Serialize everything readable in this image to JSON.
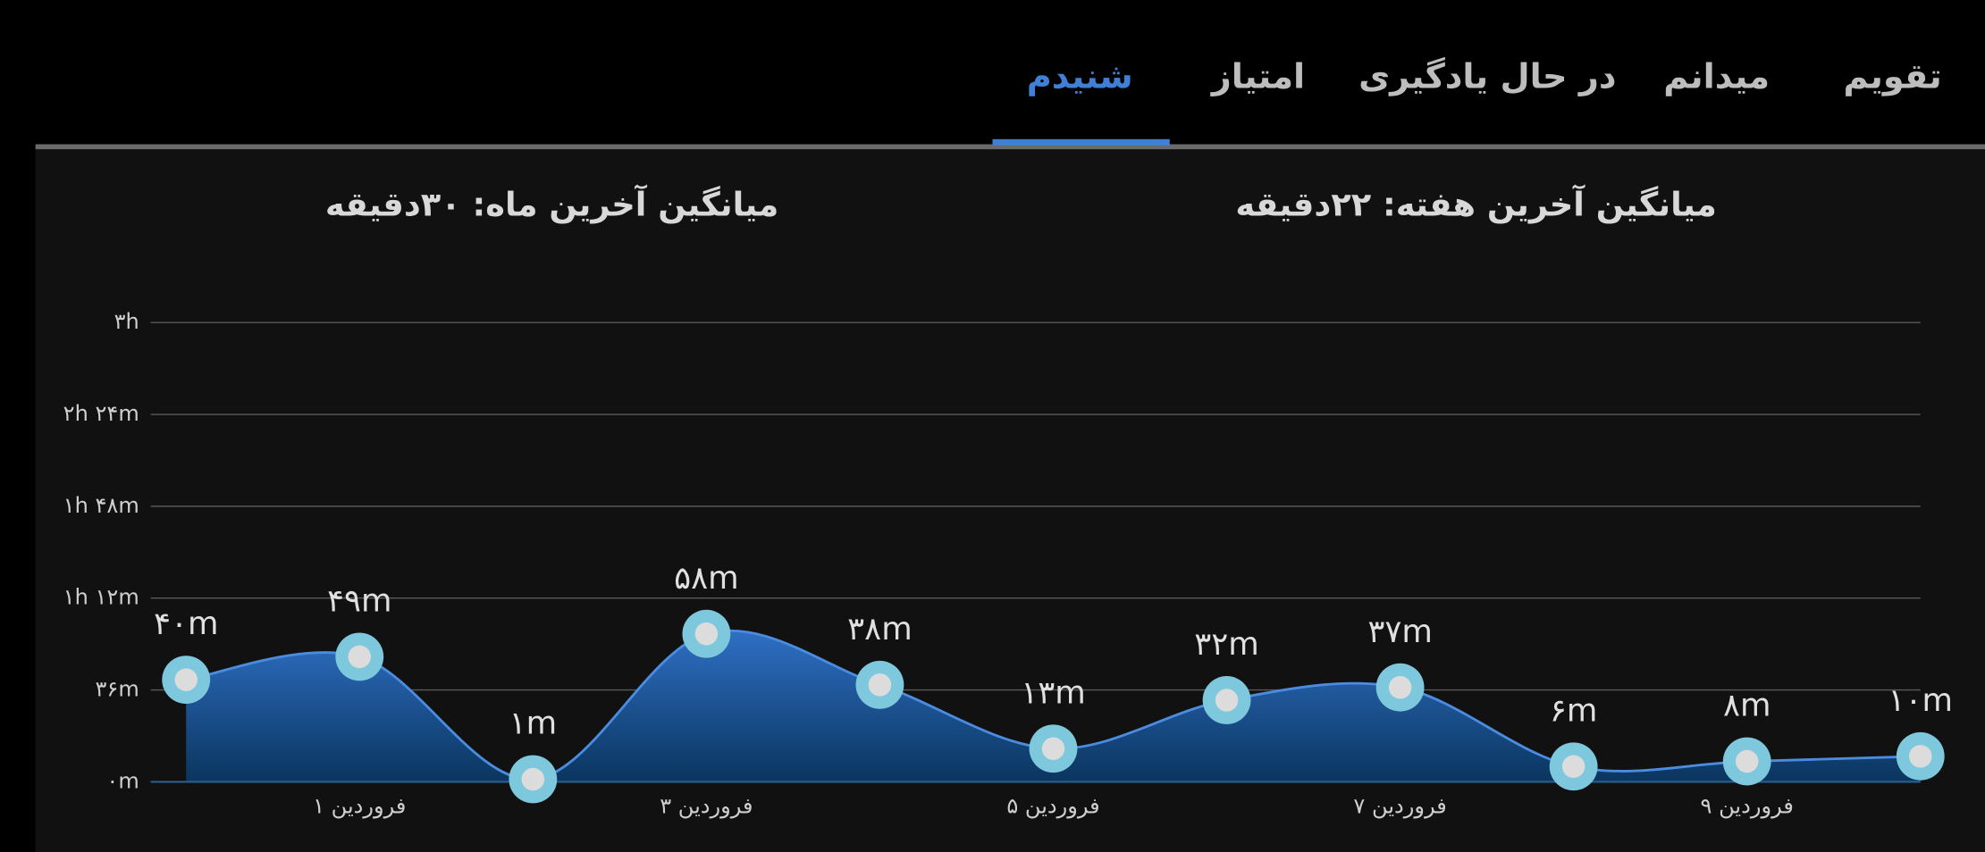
{
  "tabs": [
    "تقویم",
    "میدانم",
    "در حال یادگیری",
    "امتیاز",
    "شنیدم"
  ],
  "headings": {
    "week": "میانگین آخرین هفته: ۲۲دقیقه",
    "month": "میانگین آخرین ماه: ۳۰دقیقه"
  },
  "chart_data": {
    "type": "area",
    "categories": [
      null,
      "۱ فروردین",
      null,
      "۳ فروردین",
      null,
      "۵ فروردین",
      null,
      "۷ فروردین",
      null,
      "۹ فروردین",
      null
    ],
    "values": [
      40,
      49,
      1,
      58,
      38,
      13,
      32,
      37,
      6,
      8,
      10
    ],
    "value_labels": [
      "۴۰m",
      "۴۹m",
      "۱m",
      "۵۸m",
      "۳۸m",
      "۱۳m",
      "۳۲m",
      "۳۷m",
      "۶m",
      "۸m",
      "۱۰m"
    ],
    "color": "#2f6fc4",
    "ylim": [
      0,
      180
    ],
    "yticks": [
      {
        "value": 0,
        "label": "۰m"
      },
      {
        "value": 36,
        "label": "۳۶m"
      },
      {
        "value": 72,
        "label": "۱h ۱۲m"
      },
      {
        "value": 108,
        "label": "۱h ۴۸m"
      },
      {
        "value": 144,
        "label": "۲h ۲۴m"
      },
      {
        "value": 180,
        "label": "۳h"
      }
    ],
    "grid": true
  }
}
